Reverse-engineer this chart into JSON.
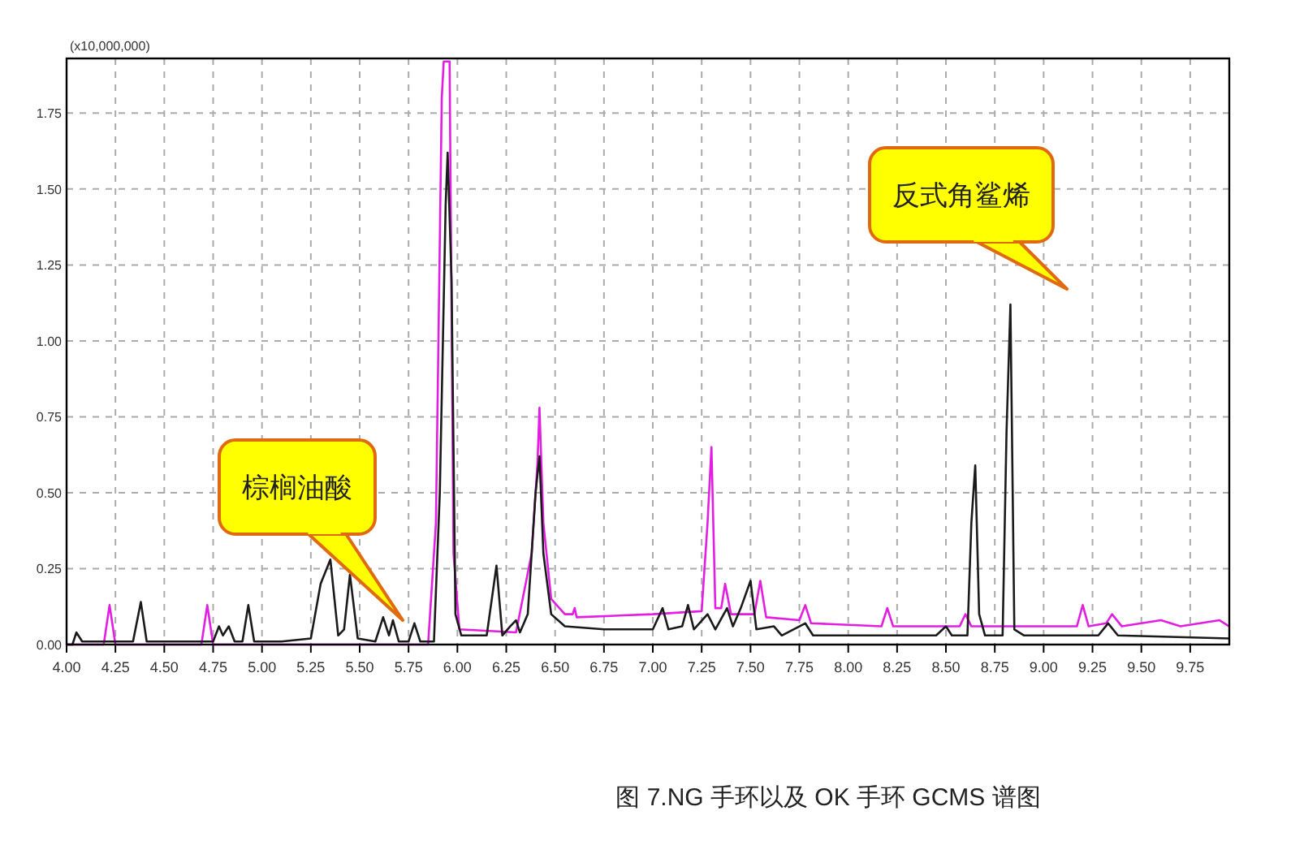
{
  "chart_data": {
    "type": "line",
    "ylabel": "(x10,000,000)",
    "xlim": [
      4.0,
      9.95
    ],
    "ylim": [
      0,
      1.93
    ],
    "xticks": [
      {
        "value": 4,
        "label": "4.00"
      },
      {
        "value": 4.25,
        "label": "4.25"
      },
      {
        "value": 4.5,
        "label": "4.50"
      },
      {
        "value": 4.75,
        "label": "4.75"
      },
      {
        "value": 5,
        "label": "5.00"
      },
      {
        "value": 5.25,
        "label": "5.25"
      },
      {
        "value": 5.5,
        "label": "5.50"
      },
      {
        "value": 5.75,
        "label": "5.75"
      },
      {
        "value": 6,
        "label": "6.00"
      },
      {
        "value": 6.25,
        "label": "6.25"
      },
      {
        "value": 6.5,
        "label": "6.50"
      },
      {
        "value": 6.75,
        "label": "6.75"
      },
      {
        "value": 7,
        "label": "7.00"
      },
      {
        "value": 7.25,
        "label": "7.25"
      },
      {
        "value": 7.5,
        "label": "7.50"
      },
      {
        "value": 7.75,
        "label": "7.75"
      },
      {
        "value": 8,
        "label": "8.00"
      },
      {
        "value": 8.25,
        "label": "8.25"
      },
      {
        "value": 8.5,
        "label": "8.50"
      },
      {
        "value": 8.75,
        "label": "8.75"
      },
      {
        "value": 9,
        "label": "9.00"
      },
      {
        "value": 9.25,
        "label": "9.25"
      },
      {
        "value": 9.5,
        "label": "9.50"
      },
      {
        "value": 9.75,
        "label": "9.75"
      }
    ],
    "yticks": [
      {
        "value": 0,
        "label": "0.00"
      },
      {
        "value": 0.25,
        "label": "0.25"
      },
      {
        "value": 0.5,
        "label": "0.50"
      },
      {
        "value": 0.75,
        "label": "0.75"
      },
      {
        "value": 1,
        "label": "1.00"
      },
      {
        "value": 1.25,
        "label": "1.25"
      },
      {
        "value": 1.5,
        "label": "1.50"
      },
      {
        "value": 1.75,
        "label": "1.75"
      }
    ],
    "grid": true,
    "line_style": "solid",
    "marker": "none",
    "series": [
      {
        "color": "#e21ee2",
        "x": [
          4.0,
          4.19,
          4.22,
          4.25,
          4.69,
          4.72,
          4.75,
          5.85,
          5.89,
          5.92,
          5.93,
          5.96,
          5.98,
          6.01,
          6.3,
          6.38,
          6.41,
          6.42,
          6.44,
          6.48,
          6.55,
          6.59,
          6.6,
          6.61,
          7.0,
          7.25,
          7.28,
          7.3,
          7.32,
          7.35,
          7.37,
          7.4,
          7.52,
          7.55,
          7.58,
          7.75,
          7.78,
          7.81,
          8.17,
          8.2,
          8.23,
          8.57,
          8.6,
          8.63,
          9.17,
          9.2,
          9.23,
          9.32,
          9.35,
          9.4,
          9.6,
          9.7,
          9.9,
          9.95
        ],
        "values": [
          0.0,
          0.0,
          0.13,
          0.0,
          0.0,
          0.13,
          0.0,
          0.0,
          0.4,
          1.8,
          1.92,
          1.92,
          0.3,
          0.05,
          0.04,
          0.3,
          0.6,
          0.78,
          0.4,
          0.15,
          0.1,
          0.1,
          0.12,
          0.09,
          0.1,
          0.11,
          0.4,
          0.65,
          0.12,
          0.12,
          0.2,
          0.1,
          0.1,
          0.21,
          0.09,
          0.08,
          0.13,
          0.07,
          0.06,
          0.12,
          0.06,
          0.06,
          0.1,
          0.06,
          0.06,
          0.13,
          0.06,
          0.07,
          0.1,
          0.06,
          0.08,
          0.06,
          0.08,
          0.06
        ]
      },
      {
        "color": "#1a1a1a",
        "x": [
          4.0,
          4.03,
          4.05,
          4.08,
          4.34,
          4.38,
          4.41,
          4.75,
          4.78,
          4.8,
          4.83,
          4.86,
          4.9,
          4.93,
          4.96,
          5.1,
          5.25,
          5.3,
          5.35,
          5.39,
          5.42,
          5.45,
          5.49,
          5.58,
          5.62,
          5.65,
          5.67,
          5.7,
          5.75,
          5.78,
          5.81,
          5.88,
          5.91,
          5.94,
          5.95,
          5.97,
          5.99,
          6.02,
          6.15,
          6.2,
          6.23,
          6.27,
          6.3,
          6.32,
          6.36,
          6.4,
          6.42,
          6.44,
          6.48,
          6.55,
          6.75,
          7.0,
          7.05,
          7.08,
          7.15,
          7.18,
          7.21,
          7.28,
          7.32,
          7.38,
          7.41,
          7.45,
          7.5,
          7.53,
          7.62,
          7.66,
          7.78,
          7.82,
          8.2,
          8.45,
          8.5,
          8.53,
          8.61,
          8.63,
          8.65,
          8.67,
          8.7,
          8.79,
          8.81,
          8.83,
          8.85,
          8.9,
          9.28,
          9.33,
          9.38,
          9.95
        ],
        "values": [
          0.0,
          0.0,
          0.04,
          0.01,
          0.01,
          0.14,
          0.01,
          0.01,
          0.06,
          0.03,
          0.06,
          0.01,
          0.01,
          0.13,
          0.01,
          0.01,
          0.02,
          0.2,
          0.28,
          0.03,
          0.05,
          0.23,
          0.02,
          0.01,
          0.09,
          0.03,
          0.08,
          0.01,
          0.01,
          0.07,
          0.01,
          0.01,
          0.5,
          1.45,
          1.62,
          1.2,
          0.1,
          0.03,
          0.03,
          0.26,
          0.03,
          0.06,
          0.08,
          0.04,
          0.1,
          0.5,
          0.62,
          0.3,
          0.1,
          0.06,
          0.05,
          0.05,
          0.12,
          0.05,
          0.06,
          0.13,
          0.05,
          0.1,
          0.05,
          0.12,
          0.06,
          0.12,
          0.21,
          0.05,
          0.06,
          0.03,
          0.07,
          0.03,
          0.03,
          0.03,
          0.06,
          0.03,
          0.03,
          0.4,
          0.59,
          0.1,
          0.03,
          0.03,
          0.7,
          1.12,
          0.05,
          0.03,
          0.03,
          0.07,
          0.03,
          0.02
        ]
      }
    ],
    "annotations": [
      "棕榈油酸",
      "反式角鲨烯",
      "图 7.NG 手环以及 OK 手环 GCMS 谱图"
    ]
  }
}
